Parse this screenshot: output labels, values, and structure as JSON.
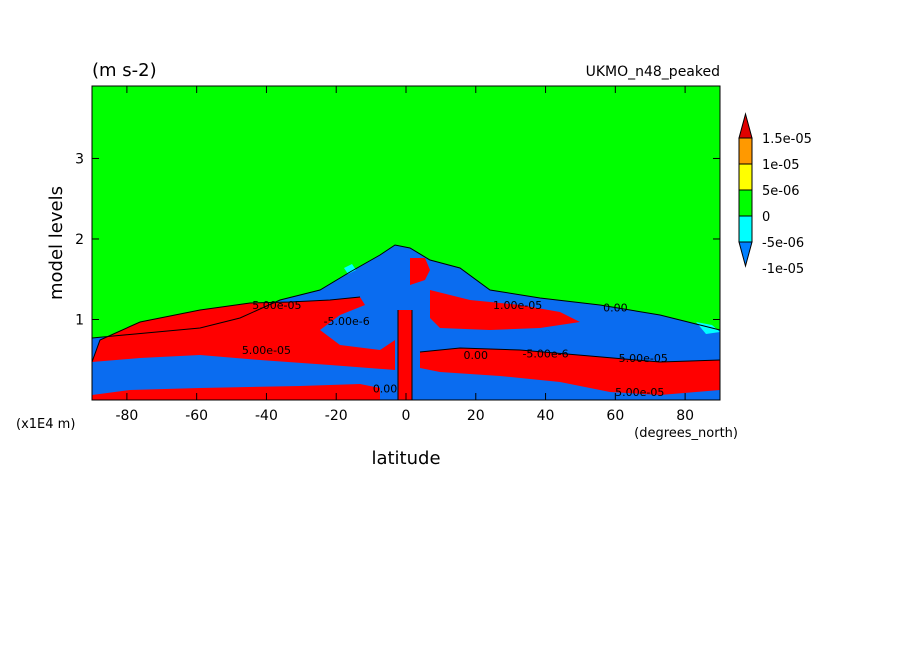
{
  "header": {
    "units": "(m s-2)",
    "source": "UKMO_n48_peaked"
  },
  "chart_data": {
    "type": "contour",
    "xlabel": "latitude",
    "xunit": "(degrees_north)",
    "ylabel": "model levels",
    "yunit": "(x1E4 m)",
    "xlim": [
      -90,
      90
    ],
    "ylim": [
      0,
      3.9
    ],
    "x_ticks": [
      {
        "value": -80,
        "label": "-80"
      },
      {
        "value": -60,
        "label": "-60"
      },
      {
        "value": -40,
        "label": "-40"
      },
      {
        "value": -20,
        "label": "-20"
      },
      {
        "value": 0,
        "label": "0"
      },
      {
        "value": 20,
        "label": "20"
      },
      {
        "value": 40,
        "label": "40"
      },
      {
        "value": 60,
        "label": "60"
      },
      {
        "value": 80,
        "label": "80"
      }
    ],
    "y_ticks": [
      {
        "value": 1,
        "label": "1"
      },
      {
        "value": 2,
        "label": "2"
      },
      {
        "value": 3,
        "label": "3"
      }
    ],
    "colorbar": {
      "bins": [
        {
          "color": "#e00000"
        },
        {
          "color": "#ff9900"
        },
        {
          "color": "#ffff00"
        },
        {
          "color": "#00ff00"
        },
        {
          "color": "#00ffff"
        },
        {
          "color": "#0080ff"
        }
      ],
      "labels": [
        "1.5e-05",
        "1e-05",
        "5e-06",
        "0",
        "-5e-06",
        "-1e-05"
      ]
    },
    "colors": {
      "background_zero": "#00ff00",
      "positive": "#ff0000",
      "negative": "#0a6cf0",
      "weak_negative": "#00ffff"
    },
    "contour_labels": [
      {
        "text": "5.00e-05",
        "x": -37,
        "y": 1.18
      },
      {
        "text": "-5.00e-6",
        "x": -17,
        "y": 0.98
      },
      {
        "text": "1.00e-05",
        "x": 32,
        "y": 1.18
      },
      {
        "text": "0.00",
        "x": 60,
        "y": 1.15
      },
      {
        "text": "5.00e-05",
        "x": -40,
        "y": 0.62
      },
      {
        "text": "0.00",
        "x": 20,
        "y": 0.56
      },
      {
        "text": "-5.00e-6",
        "x": 40,
        "y": 0.58
      },
      {
        "text": "5.00e-05",
        "x": 68,
        "y": 0.52
      },
      {
        "text": "0.00",
        "x": -6,
        "y": 0.14
      },
      {
        "text": "5.00e-05",
        "x": 67,
        "y": 0.1
      }
    ]
  }
}
